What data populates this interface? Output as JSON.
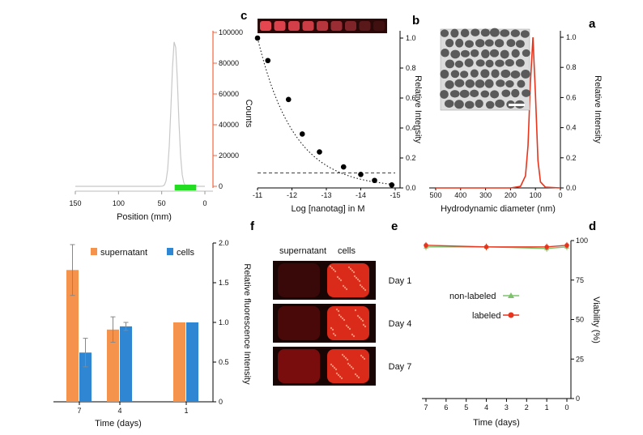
{
  "figure": {
    "panel_letters": [
      "a",
      "b",
      "c",
      "d",
      "e",
      "f"
    ]
  },
  "panel_a": {
    "ylabel": "Relative Intensity",
    "xlabel": "Hydrodynamic diameter (nm)"
  },
  "panel_b": {
    "ylabel": "Relative Intensity",
    "xlabel": "Log [nanotag] in M"
  },
  "panel_c": {
    "ylabel": "Counts",
    "xlabel": "Position (mm)"
  },
  "panel_d": {
    "ylabel": "Viability (%)",
    "xlabel": "Time (days)",
    "legend": [
      "labeled",
      "non-labeled"
    ]
  },
  "panel_e": {
    "ylabel": "Relative fluorescence Intensity",
    "xlabel": "Time (days)",
    "legend": [
      "cells",
      "supernatant"
    ]
  },
  "panel_f": {
    "col_headers": [
      "cells",
      "supernatant"
    ],
    "row_labels": [
      "Day 1",
      "Day 4",
      "Day 7"
    ]
  },
  "colors": {
    "red": "#e8341c",
    "green": "#7dc36b",
    "blue": "#2f86d3",
    "orange": "#f5924b",
    "laser_green": "#22dd22",
    "gray": "#c8c8c8"
  },
  "chart_data": [
    {
      "panel": "a",
      "type": "line",
      "xlabel": "Hydrodynamic diameter (nm)",
      "ylabel": "Relative Intensity",
      "xlim": [
        0,
        500
      ],
      "ylim": [
        0,
        1.0
      ],
      "x_reversed": true,
      "xticks": [
        0,
        100,
        200,
        300,
        400,
        500
      ],
      "yticks": [
        0.0,
        0.2,
        0.4,
        0.6,
        0.8,
        1.0
      ],
      "series": [
        {
          "x": [
            0,
            60,
            80,
            90,
            100,
            110,
            120,
            130,
            140,
            160,
            200,
            300,
            500
          ],
          "y": [
            0,
            0.005,
            0.04,
            0.18,
            0.62,
            1.0,
            0.7,
            0.28,
            0.08,
            0.01,
            0,
            0,
            0
          ]
        }
      ]
    },
    {
      "panel": "b",
      "type": "scatter",
      "xlabel": "Log [nanotag] in M",
      "ylabel": "Relative Intensity",
      "xlim": [
        -15,
        -11
      ],
      "ylim": [
        0,
        1.0
      ],
      "x_reversed": true,
      "xticks": [
        -15,
        -14,
        -13,
        -12,
        -11
      ],
      "yticks": [
        0.0,
        0.2,
        0.4,
        0.6,
        0.8,
        1.0
      ],
      "series": [
        {
          "x": [
            -11,
            -11.3,
            -11.9,
            -12.3,
            -12.8,
            -13.5,
            -14.0,
            -14.4,
            -14.9
          ],
          "y": [
            1.0,
            0.85,
            0.59,
            0.36,
            0.24,
            0.14,
            0.09,
            0.05,
            0.02
          ]
        }
      ],
      "threshold_y": 0.1
    },
    {
      "panel": "c",
      "type": "line",
      "xlabel": "Position (mm)",
      "ylabel": "Counts",
      "xlim": [
        0,
        150
      ],
      "ylim": [
        0,
        100000
      ],
      "x_reversed": true,
      "xticks": [
        0,
        50,
        100,
        150
      ],
      "yticks": [
        0,
        20000,
        40000,
        60000,
        80000,
        100000
      ],
      "series": [
        {
          "x": [
            0,
            10,
            20,
            25,
            30,
            35,
            40,
            45,
            55,
            100,
            150
          ],
          "y": [
            0,
            300,
            4000,
            20000,
            55000,
            95000,
            45000,
            10000,
            500,
            0,
            0
          ]
        }
      ],
      "laser_band_x": [
        10,
        35
      ]
    },
    {
      "panel": "d",
      "type": "line",
      "xlabel": "Time (days)",
      "ylabel": "Viability (%)",
      "xlim": [
        0,
        7
      ],
      "ylim": [
        0,
        100
      ],
      "x_reversed": true,
      "xticks": [
        0,
        1,
        2,
        3,
        4,
        5,
        6,
        7
      ],
      "yticks": [
        0,
        25,
        50,
        75,
        100
      ],
      "series": [
        {
          "name": "labeled",
          "x": [
            0,
            1,
            4,
            7
          ],
          "y": [
            97,
            96,
            96,
            97
          ]
        },
        {
          "name": "non-labeled",
          "x": [
            0,
            1,
            4,
            7
          ],
          "y": [
            96,
            95,
            96,
            96
          ]
        }
      ]
    },
    {
      "panel": "e",
      "type": "bar",
      "xlabel": "Time (days)",
      "ylabel": "Relative fluorescence Intensity",
      "categories": [
        "1",
        "4",
        "7"
      ],
      "ylim": [
        0,
        2.0
      ],
      "x_reversed": true,
      "yticks": [
        0,
        0.5,
        1.0,
        1.5,
        2.0
      ],
      "series": [
        {
          "name": "cells",
          "values": [
            1.0,
            0.95,
            0.62
          ],
          "errors": [
            0.0,
            0.05,
            0.18
          ]
        },
        {
          "name": "supernatant",
          "values": [
            1.0,
            0.91,
            1.66
          ],
          "errors": [
            0.0,
            0.16,
            0.32
          ]
        }
      ]
    }
  ]
}
